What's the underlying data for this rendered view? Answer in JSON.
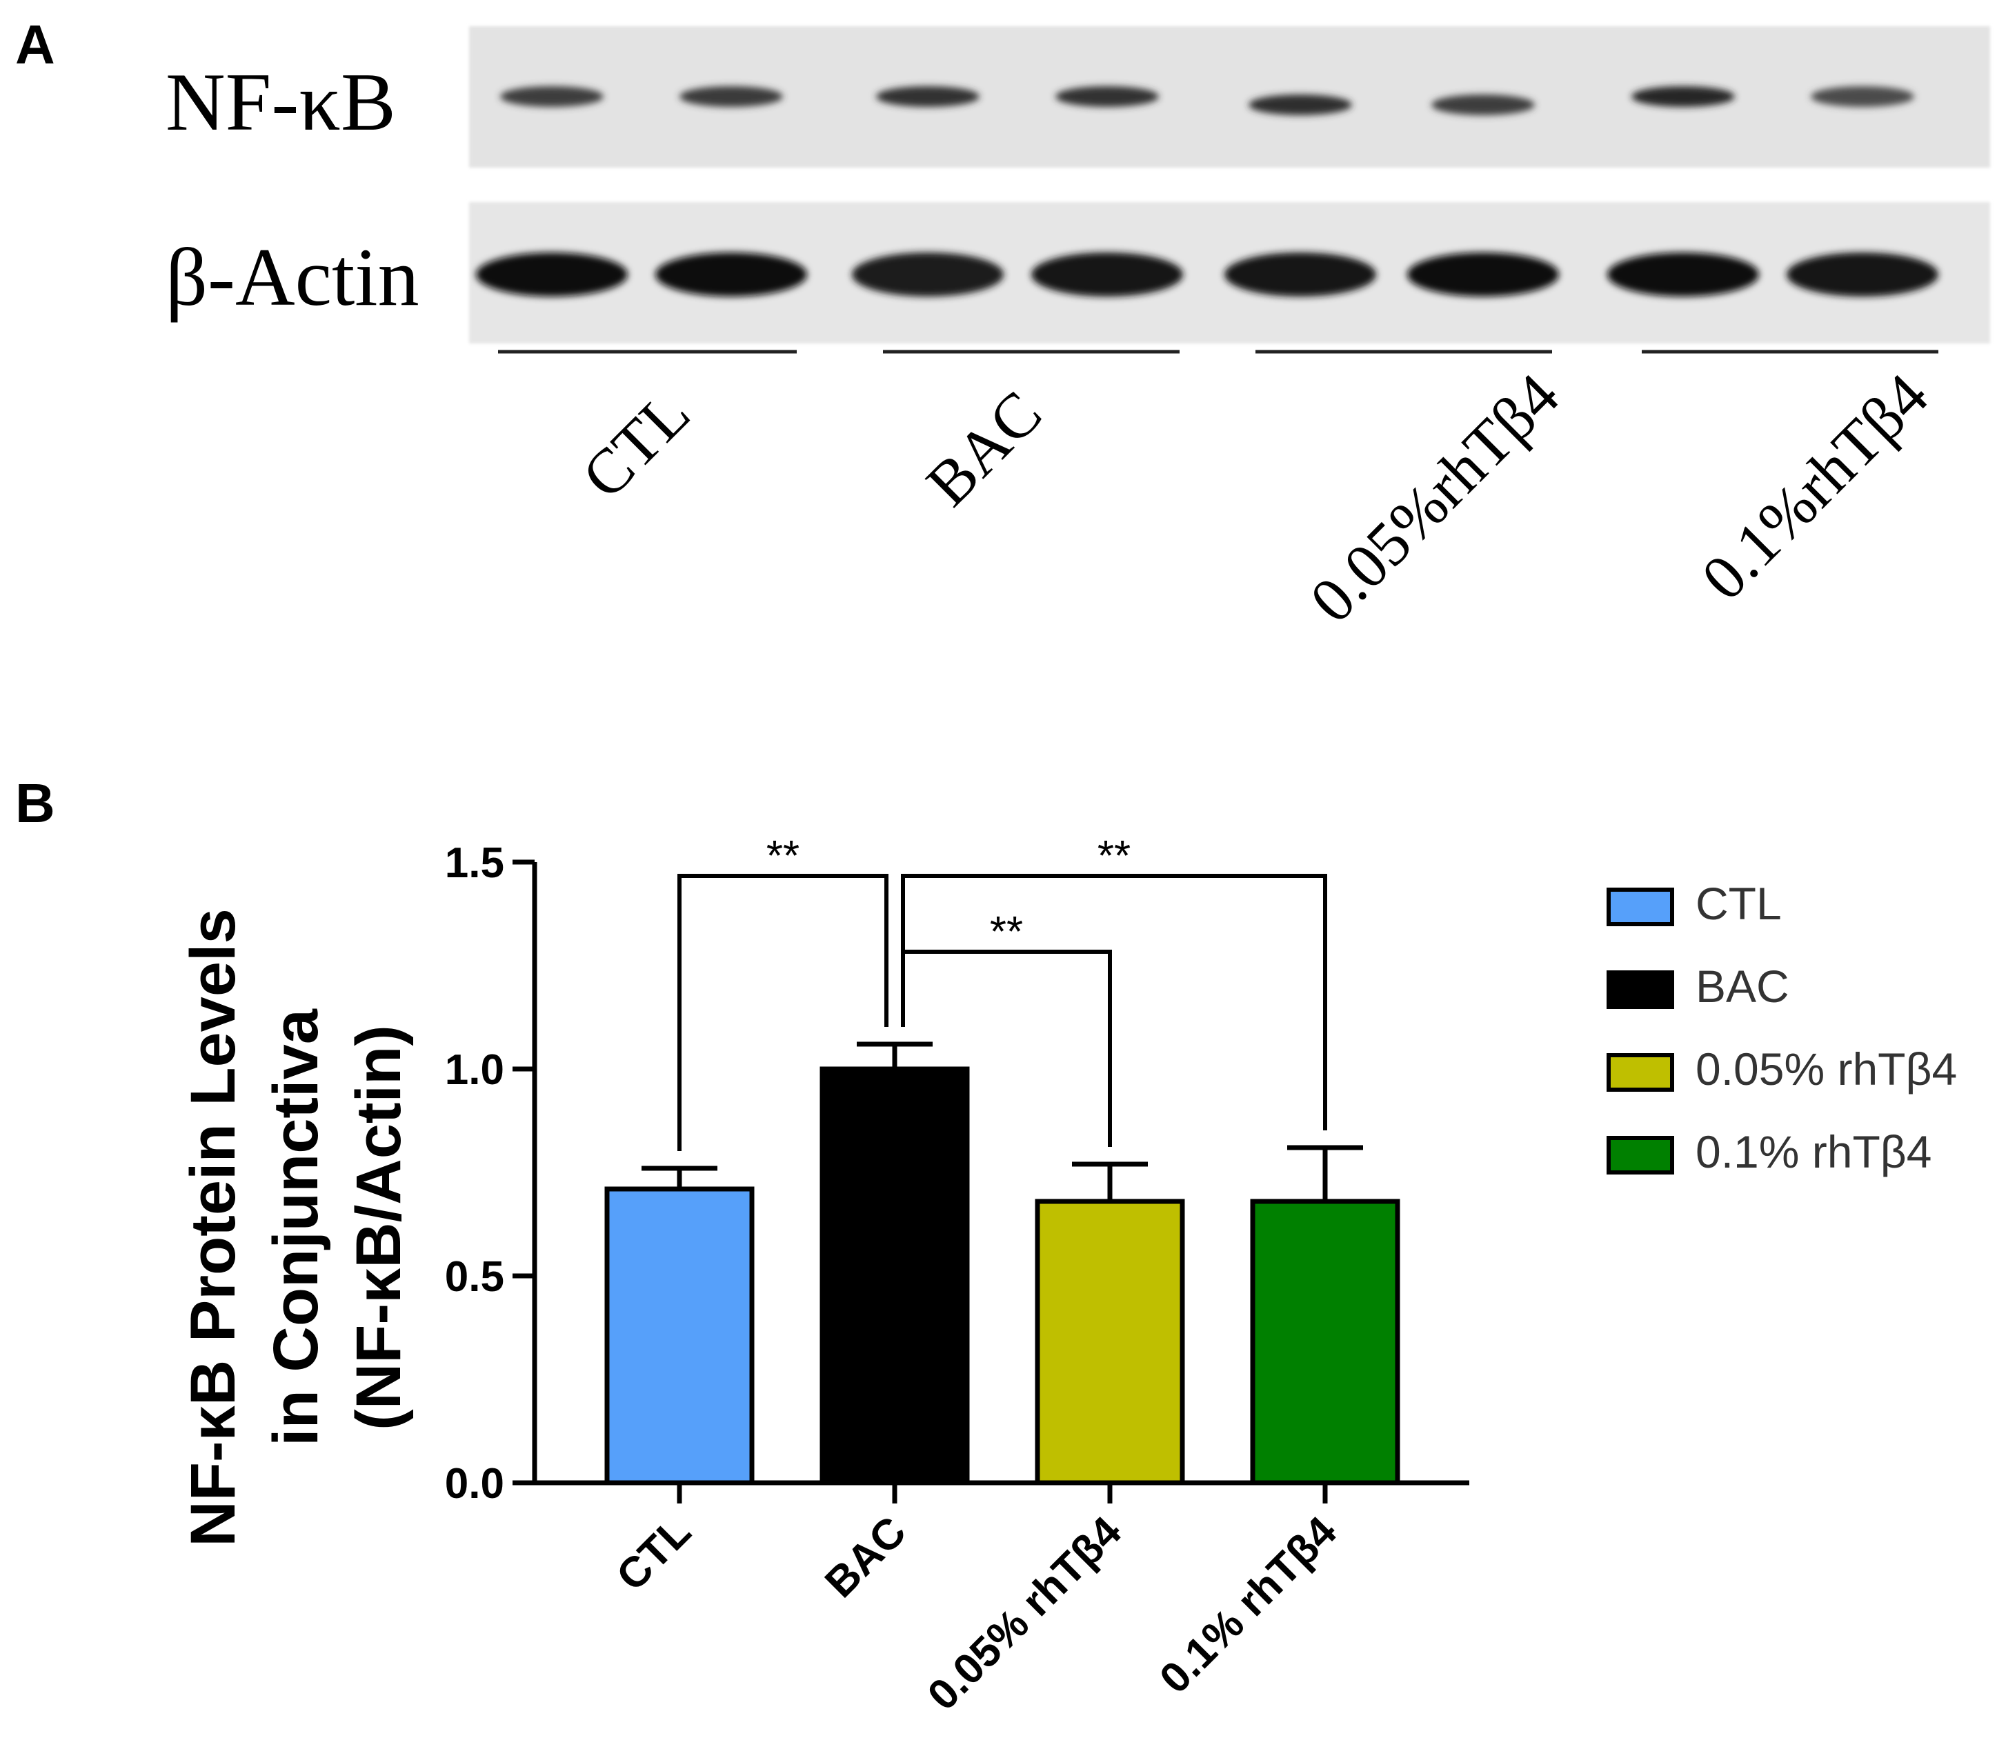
{
  "panel_a": {
    "label": "A",
    "blots": [
      {
        "name": "NF-κB",
        "intensity": [
          0.78,
          0.8,
          0.84,
          0.84,
          0.86,
          0.78,
          0.9,
          0.72
        ]
      },
      {
        "name": "β-Actin",
        "intensity": [
          1.0,
          1.0,
          0.95,
          0.97,
          0.97,
          1.0,
          1.0,
          0.96
        ]
      }
    ],
    "groups": [
      "CTL",
      "BAC",
      "0.05%rhTβ4",
      "0.1%rhTβ4"
    ]
  },
  "panel_b": {
    "label": "B"
  },
  "chart_data": {
    "type": "bar",
    "categories": [
      "CTL",
      "BAC",
      "0.05% rhTβ4",
      "0.1% rhTβ4"
    ],
    "values": [
      0.71,
      1.0,
      0.68,
      0.68
    ],
    "errors": [
      0.05,
      0.06,
      0.09,
      0.13
    ],
    "colors": [
      "#56A0FA",
      "#000000",
      "#BFBF00",
      "#008000"
    ],
    "ylabel": [
      "NF-κB Protein Levels",
      "in Conjunctiva",
      "(NF-κB/Actin)"
    ],
    "ylim": [
      0,
      1.5
    ],
    "yticks": [
      0.0,
      0.5,
      1.0,
      1.5
    ],
    "ytick_labels": [
      "0.0",
      "0.5",
      "1.0",
      "1.5"
    ],
    "legend": {
      "placement": "right",
      "entries": [
        "CTL",
        "BAC",
        "0.05% rhTβ4",
        "0.1% rhTβ4"
      ]
    },
    "significance": [
      {
        "from": "CTL",
        "to": "BAC",
        "label": "**"
      },
      {
        "from": "BAC",
        "to": "0.05% rhTβ4",
        "label": "**"
      },
      {
        "from": "BAC",
        "to": "0.1% rhTβ4",
        "label": "**"
      }
    ]
  }
}
